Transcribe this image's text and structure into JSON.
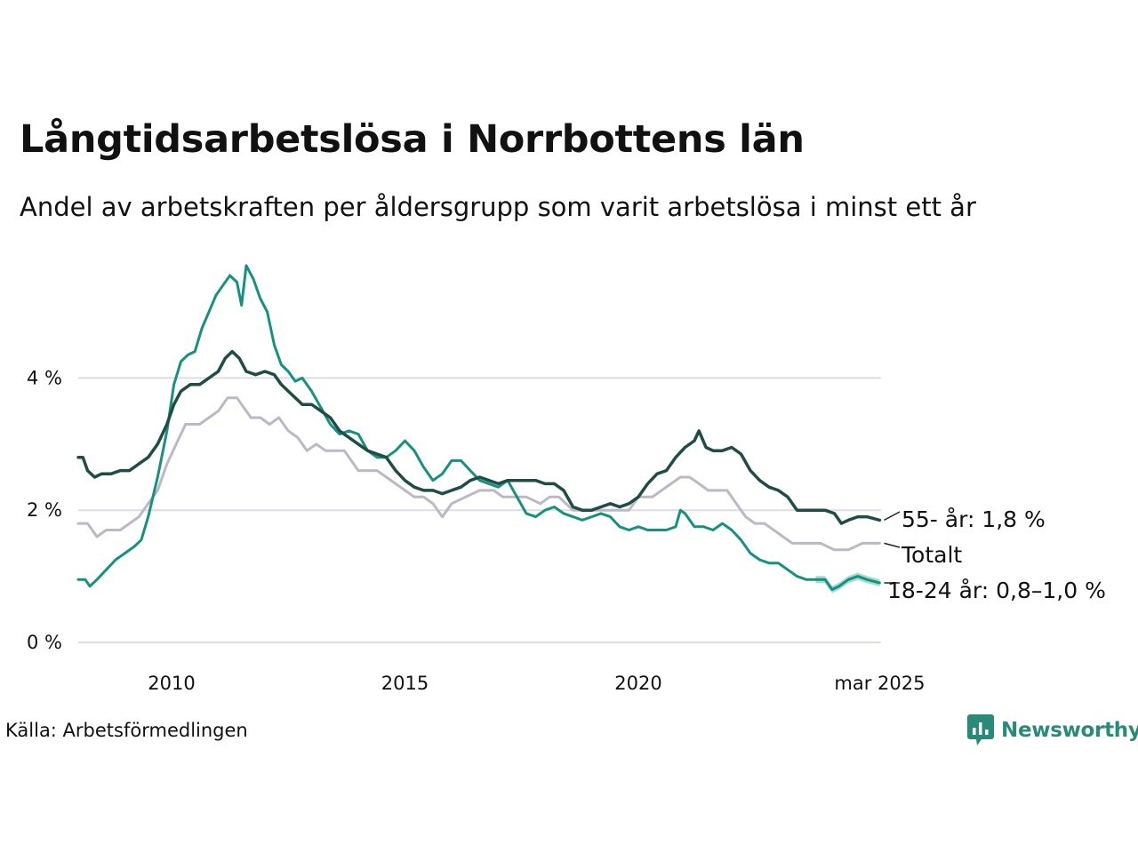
{
  "header": {
    "title": "Långtidsarbetslösa i Norrbottens län",
    "subtitle": "Andel av arbetskraften per åldersgrupp som varit arbetslösa i minst ett år"
  },
  "footer": {
    "source": "Källa: Arbetsförmedlingen",
    "brand": "Newsworthy"
  },
  "colors": {
    "older": "#1f4d45",
    "total": "#bdb8c8",
    "young": "#17917f",
    "young_band": "#8fd3c8",
    "grid": "#dedde4",
    "brand": "#2a8a7a"
  },
  "chart_data": {
    "type": "line",
    "x_range": [
      2008.0,
      2025.2
    ],
    "ylim": [
      0,
      6.2
    ],
    "y_ticks": [
      {
        "value": 0,
        "label": "0 %"
      },
      {
        "value": 2,
        "label": "2 %"
      },
      {
        "value": 4,
        "label": "4 %"
      }
    ],
    "x_ticks": [
      {
        "value": 2010,
        "label": "2010"
      },
      {
        "value": 2015,
        "label": "2015"
      },
      {
        "value": 2020,
        "label": "2020"
      },
      {
        "value": 2025.17,
        "label": "mar 2025"
      }
    ],
    "grid": "horizontal",
    "series": [
      {
        "key": "total",
        "name": "Totalt",
        "end_label": "Totalt",
        "points": [
          [
            2008.0,
            1.8
          ],
          [
            2008.2,
            1.8
          ],
          [
            2008.4,
            1.6
          ],
          [
            2008.6,
            1.7
          ],
          [
            2008.9,
            1.7
          ],
          [
            2009.1,
            1.8
          ],
          [
            2009.3,
            1.9
          ],
          [
            2009.5,
            2.1
          ],
          [
            2009.7,
            2.3
          ],
          [
            2009.9,
            2.7
          ],
          [
            2010.1,
            3.0
          ],
          [
            2010.3,
            3.3
          ],
          [
            2010.6,
            3.3
          ],
          [
            2010.8,
            3.4
          ],
          [
            2011.0,
            3.5
          ],
          [
            2011.2,
            3.7
          ],
          [
            2011.4,
            3.7
          ],
          [
            2011.5,
            3.6
          ],
          [
            2011.7,
            3.4
          ],
          [
            2011.9,
            3.4
          ],
          [
            2012.1,
            3.3
          ],
          [
            2012.3,
            3.4
          ],
          [
            2012.5,
            3.2
          ],
          [
            2012.7,
            3.1
          ],
          [
            2012.9,
            2.9
          ],
          [
            2013.1,
            3.0
          ],
          [
            2013.3,
            2.9
          ],
          [
            2013.7,
            2.9
          ],
          [
            2014.0,
            2.6
          ],
          [
            2014.4,
            2.6
          ],
          [
            2014.6,
            2.5
          ],
          [
            2014.8,
            2.4
          ],
          [
            2015.0,
            2.3
          ],
          [
            2015.2,
            2.2
          ],
          [
            2015.4,
            2.2
          ],
          [
            2015.6,
            2.1
          ],
          [
            2015.8,
            1.9
          ],
          [
            2016.0,
            2.1
          ],
          [
            2016.3,
            2.2
          ],
          [
            2016.6,
            2.3
          ],
          [
            2016.9,
            2.3
          ],
          [
            2017.1,
            2.2
          ],
          [
            2017.3,
            2.2
          ],
          [
            2017.6,
            2.2
          ],
          [
            2017.9,
            2.1
          ],
          [
            2018.1,
            2.2
          ],
          [
            2018.3,
            2.2
          ],
          [
            2018.6,
            2.0
          ],
          [
            2018.9,
            2.0
          ],
          [
            2019.2,
            2.0
          ],
          [
            2019.5,
            2.0
          ],
          [
            2019.8,
            2.0
          ],
          [
            2020.0,
            2.2
          ],
          [
            2020.3,
            2.2
          ],
          [
            2020.5,
            2.3
          ],
          [
            2020.7,
            2.4
          ],
          [
            2020.9,
            2.5
          ],
          [
            2021.1,
            2.5
          ],
          [
            2021.3,
            2.4
          ],
          [
            2021.5,
            2.3
          ],
          [
            2021.7,
            2.3
          ],
          [
            2021.9,
            2.3
          ],
          [
            2022.1,
            2.1
          ],
          [
            2022.3,
            1.9
          ],
          [
            2022.5,
            1.8
          ],
          [
            2022.7,
            1.8
          ],
          [
            2022.9,
            1.7
          ],
          [
            2023.1,
            1.6
          ],
          [
            2023.3,
            1.5
          ],
          [
            2023.6,
            1.5
          ],
          [
            2023.9,
            1.5
          ],
          [
            2024.2,
            1.4
          ],
          [
            2024.5,
            1.4
          ],
          [
            2024.8,
            1.5
          ],
          [
            2025.17,
            1.5
          ]
        ]
      },
      {
        "key": "older",
        "name": "55- år",
        "end_label": "55- år: 1,8 %",
        "points": [
          [
            2008.0,
            2.8
          ],
          [
            2008.1,
            2.8
          ],
          [
            2008.2,
            2.6
          ],
          [
            2008.35,
            2.5
          ],
          [
            2008.5,
            2.55
          ],
          [
            2008.7,
            2.55
          ],
          [
            2008.9,
            2.6
          ],
          [
            2009.1,
            2.6
          ],
          [
            2009.3,
            2.7
          ],
          [
            2009.5,
            2.8
          ],
          [
            2009.7,
            3.0
          ],
          [
            2009.9,
            3.3
          ],
          [
            2010.05,
            3.6
          ],
          [
            2010.2,
            3.8
          ],
          [
            2010.4,
            3.9
          ],
          [
            2010.6,
            3.9
          ],
          [
            2010.8,
            4.0
          ],
          [
            2011.0,
            4.1
          ],
          [
            2011.15,
            4.3
          ],
          [
            2011.3,
            4.4
          ],
          [
            2011.45,
            4.3
          ],
          [
            2011.6,
            4.1
          ],
          [
            2011.8,
            4.05
          ],
          [
            2012.0,
            4.1
          ],
          [
            2012.2,
            4.05
          ],
          [
            2012.35,
            3.9
          ],
          [
            2012.5,
            3.8
          ],
          [
            2012.65,
            3.7
          ],
          [
            2012.8,
            3.6
          ],
          [
            2013.0,
            3.6
          ],
          [
            2013.2,
            3.5
          ],
          [
            2013.4,
            3.4
          ],
          [
            2013.6,
            3.2
          ],
          [
            2013.8,
            3.1
          ],
          [
            2014.0,
            3.0
          ],
          [
            2014.2,
            2.9
          ],
          [
            2014.4,
            2.85
          ],
          [
            2014.6,
            2.8
          ],
          [
            2014.8,
            2.6
          ],
          [
            2015.0,
            2.45
          ],
          [
            2015.2,
            2.35
          ],
          [
            2015.4,
            2.3
          ],
          [
            2015.6,
            2.3
          ],
          [
            2015.8,
            2.25
          ],
          [
            2016.0,
            2.3
          ],
          [
            2016.2,
            2.35
          ],
          [
            2016.4,
            2.45
          ],
          [
            2016.6,
            2.5
          ],
          [
            2016.8,
            2.45
          ],
          [
            2017.0,
            2.4
          ],
          [
            2017.2,
            2.45
          ],
          [
            2017.4,
            2.45
          ],
          [
            2017.6,
            2.45
          ],
          [
            2017.8,
            2.45
          ],
          [
            2018.0,
            2.4
          ],
          [
            2018.2,
            2.4
          ],
          [
            2018.4,
            2.3
          ],
          [
            2018.6,
            2.05
          ],
          [
            2018.8,
            2.0
          ],
          [
            2019.0,
            2.0
          ],
          [
            2019.2,
            2.05
          ],
          [
            2019.4,
            2.1
          ],
          [
            2019.6,
            2.05
          ],
          [
            2019.8,
            2.1
          ],
          [
            2020.0,
            2.2
          ],
          [
            2020.2,
            2.4
          ],
          [
            2020.4,
            2.55
          ],
          [
            2020.6,
            2.6
          ],
          [
            2020.8,
            2.8
          ],
          [
            2021.0,
            2.95
          ],
          [
            2021.2,
            3.05
          ],
          [
            2021.3,
            3.2
          ],
          [
            2021.45,
            2.95
          ],
          [
            2021.6,
            2.9
          ],
          [
            2021.8,
            2.9
          ],
          [
            2022.0,
            2.95
          ],
          [
            2022.2,
            2.85
          ],
          [
            2022.4,
            2.6
          ],
          [
            2022.6,
            2.45
          ],
          [
            2022.8,
            2.35
          ],
          [
            2023.0,
            2.3
          ],
          [
            2023.2,
            2.2
          ],
          [
            2023.4,
            2.0
          ],
          [
            2023.6,
            2.0
          ],
          [
            2023.8,
            2.0
          ],
          [
            2024.0,
            2.0
          ],
          [
            2024.2,
            1.95
          ],
          [
            2024.35,
            1.8
          ],
          [
            2024.5,
            1.85
          ],
          [
            2024.7,
            1.9
          ],
          [
            2024.9,
            1.9
          ],
          [
            2025.17,
            1.85
          ]
        ]
      },
      {
        "key": "young",
        "name": "18-24 år",
        "end_label": "18-24 år: 0,8–1,0 %",
        "band_from": 2023.7,
        "band_halfwidth": 0.055,
        "points": [
          [
            2008.0,
            0.95
          ],
          [
            2008.15,
            0.95
          ],
          [
            2008.25,
            0.85
          ],
          [
            2008.4,
            0.95
          ],
          [
            2008.6,
            1.1
          ],
          [
            2008.8,
            1.25
          ],
          [
            2009.0,
            1.35
          ],
          [
            2009.2,
            1.45
          ],
          [
            2009.35,
            1.55
          ],
          [
            2009.5,
            1.9
          ],
          [
            2009.7,
            2.5
          ],
          [
            2009.9,
            3.2
          ],
          [
            2010.05,
            3.9
          ],
          [
            2010.2,
            4.25
          ],
          [
            2010.35,
            4.35
          ],
          [
            2010.5,
            4.4
          ],
          [
            2010.65,
            4.75
          ],
          [
            2010.8,
            5.0
          ],
          [
            2010.95,
            5.25
          ],
          [
            2011.1,
            5.4
          ],
          [
            2011.25,
            5.55
          ],
          [
            2011.4,
            5.45
          ],
          [
            2011.5,
            5.1
          ],
          [
            2011.6,
            5.7
          ],
          [
            2011.75,
            5.5
          ],
          [
            2011.9,
            5.2
          ],
          [
            2012.05,
            5.0
          ],
          [
            2012.2,
            4.5
          ],
          [
            2012.35,
            4.2
          ],
          [
            2012.5,
            4.1
          ],
          [
            2012.65,
            3.95
          ],
          [
            2012.8,
            4.0
          ],
          [
            2013.0,
            3.8
          ],
          [
            2013.2,
            3.55
          ],
          [
            2013.4,
            3.3
          ],
          [
            2013.6,
            3.15
          ],
          [
            2013.8,
            3.2
          ],
          [
            2014.0,
            3.15
          ],
          [
            2014.2,
            2.9
          ],
          [
            2014.4,
            2.8
          ],
          [
            2014.6,
            2.8
          ],
          [
            2014.8,
            2.9
          ],
          [
            2015.0,
            3.05
          ],
          [
            2015.2,
            2.9
          ],
          [
            2015.4,
            2.65
          ],
          [
            2015.6,
            2.45
          ],
          [
            2015.8,
            2.55
          ],
          [
            2016.0,
            2.75
          ],
          [
            2016.2,
            2.75
          ],
          [
            2016.4,
            2.6
          ],
          [
            2016.6,
            2.45
          ],
          [
            2016.8,
            2.4
          ],
          [
            2017.0,
            2.35
          ],
          [
            2017.2,
            2.45
          ],
          [
            2017.4,
            2.2
          ],
          [
            2017.6,
            1.95
          ],
          [
            2017.8,
            1.9
          ],
          [
            2018.0,
            2.0
          ],
          [
            2018.2,
            2.05
          ],
          [
            2018.4,
            1.95
          ],
          [
            2018.6,
            1.9
          ],
          [
            2018.8,
            1.85
          ],
          [
            2019.0,
            1.9
          ],
          [
            2019.2,
            1.95
          ],
          [
            2019.4,
            1.9
          ],
          [
            2019.6,
            1.75
          ],
          [
            2019.8,
            1.7
          ],
          [
            2020.0,
            1.75
          ],
          [
            2020.2,
            1.7
          ],
          [
            2020.4,
            1.7
          ],
          [
            2020.6,
            1.7
          ],
          [
            2020.8,
            1.75
          ],
          [
            2020.9,
            2.0
          ],
          [
            2021.0,
            1.95
          ],
          [
            2021.2,
            1.75
          ],
          [
            2021.4,
            1.75
          ],
          [
            2021.6,
            1.7
          ],
          [
            2021.8,
            1.8
          ],
          [
            2022.0,
            1.7
          ],
          [
            2022.2,
            1.55
          ],
          [
            2022.4,
            1.35
          ],
          [
            2022.6,
            1.25
          ],
          [
            2022.8,
            1.2
          ],
          [
            2023.0,
            1.2
          ],
          [
            2023.2,
            1.1
          ],
          [
            2023.4,
            1.0
          ],
          [
            2023.6,
            0.95
          ],
          [
            2023.8,
            0.95
          ],
          [
            2024.0,
            0.95
          ],
          [
            2024.15,
            0.8
          ],
          [
            2024.3,
            0.85
          ],
          [
            2024.5,
            0.95
          ],
          [
            2024.7,
            1.0
          ],
          [
            2024.9,
            0.95
          ],
          [
            2025.17,
            0.9
          ]
        ]
      }
    ]
  }
}
